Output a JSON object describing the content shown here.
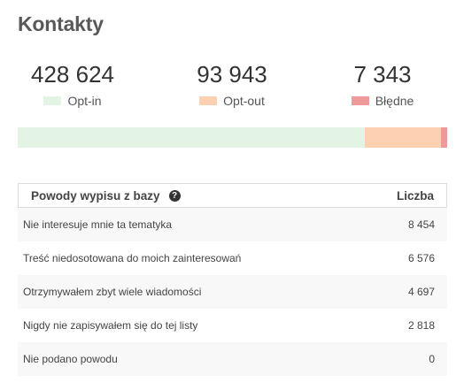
{
  "title": "Kontakty",
  "stats": [
    {
      "value": "428 624",
      "label": "Opt-in",
      "color": "#e3f3e4"
    },
    {
      "value": "93 943",
      "label": "Opt-out",
      "color": "#fdd0b1"
    },
    {
      "value": "7 343",
      "label": "Błędne",
      "color": "#ef9a9a"
    }
  ],
  "distribution_bar": {
    "segments": [
      {
        "label": "Opt-in",
        "value": 428624,
        "color": "#e3f3e4"
      },
      {
        "label": "Opt-out",
        "value": 93943,
        "color": "#fdd0b1"
      },
      {
        "label": "Błędne",
        "value": 7343,
        "color": "#ef9a9a"
      }
    ]
  },
  "table": {
    "header_reason": "Powody wypisu z bazy",
    "header_count": "Liczba",
    "help_icon": "question-circle-icon",
    "help_glyph": "?",
    "rows": [
      {
        "reason": "Nie interesuje mnie ta tematyka",
        "count": "8 454"
      },
      {
        "reason": "Treść niedosotowana do moich zainteresowań",
        "count": "6 576"
      },
      {
        "reason": "Otrzymywałem zbyt wiele wiadomości",
        "count": "4 697"
      },
      {
        "reason": "Nigdy nie zapisywałem się do tej listy",
        "count": "2 818"
      },
      {
        "reason": "Nie podano powodu",
        "count": "0"
      }
    ]
  }
}
